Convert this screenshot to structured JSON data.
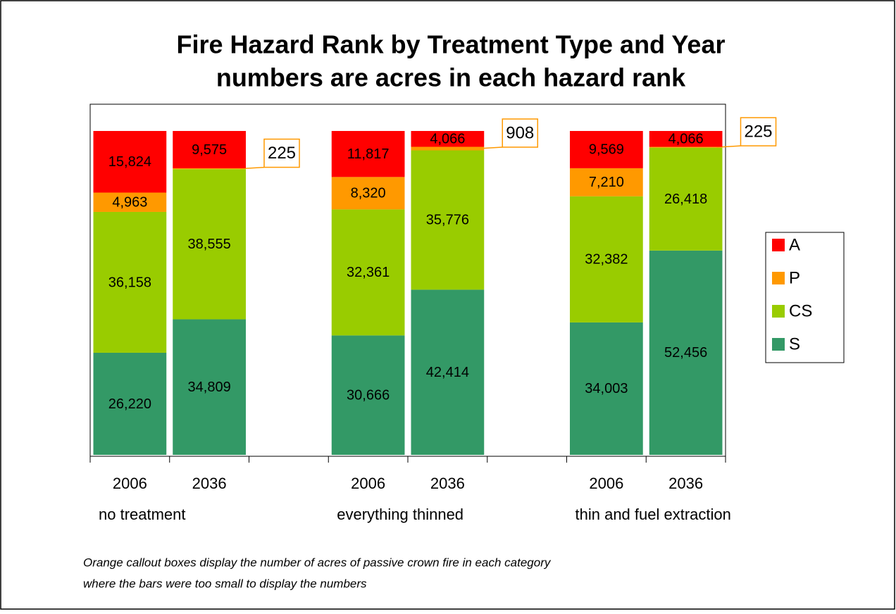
{
  "chart_data": {
    "type": "stacked_bar_100",
    "title": "Fire Hazard Rank by Treatment Type and Year",
    "subtitle": "numbers are acres in each hazard rank",
    "categories": [
      "2006",
      "2036",
      null,
      "2006",
      "2036",
      null,
      "2006",
      "2036"
    ],
    "groups": [
      "no treatment",
      "everything thinned",
      "thin and fuel extraction"
    ],
    "series": [
      {
        "name": "S",
        "color": "#339966",
        "values": [
          26220,
          34809,
          null,
          30666,
          42414,
          null,
          34003,
          52456
        ],
        "value_labels": [
          "26,220",
          "34,809",
          null,
          "30,666",
          "42,414",
          null,
          "34,003",
          "52,456"
        ]
      },
      {
        "name": "CS",
        "color": "#99cc00",
        "values": [
          36158,
          38555,
          null,
          32361,
          35776,
          null,
          32382,
          26418
        ],
        "value_labels": [
          "36,158",
          "38,555",
          null,
          "32,361",
          "35,776",
          null,
          "32,382",
          "26,418"
        ]
      },
      {
        "name": "P",
        "color": "#ff9900",
        "values": [
          4963,
          225,
          null,
          8320,
          908,
          null,
          7210,
          225
        ],
        "value_labels": [
          "4,963",
          null,
          null,
          "8,320",
          null,
          null,
          "7,210",
          null
        ]
      },
      {
        "name": "A",
        "color": "#ff0000",
        "values": [
          15824,
          9575,
          null,
          11817,
          4066,
          null,
          9569,
          4066
        ],
        "value_labels": [
          "15,824",
          "9,575",
          null,
          "11,817",
          "4,066",
          null,
          "9,569",
          "4,066"
        ]
      }
    ],
    "legend": "right",
    "notes": [
      "Orange callout boxes display the number of acres of passive crown fire in each category",
      "where the bars were too small to display the numbers"
    ]
  }
}
